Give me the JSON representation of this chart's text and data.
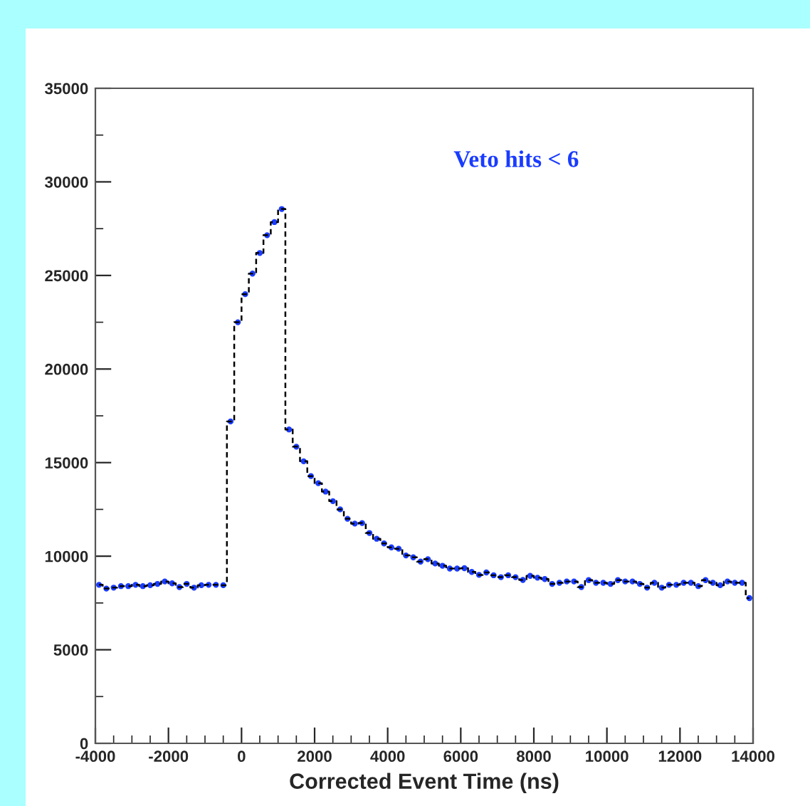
{
  "chart_data": {
    "type": "step",
    "xlabel": "Corrected Event Time (ns)",
    "annotations": [
      "Veto hits < 6"
    ],
    "x": [
      -3900,
      -3700,
      -3500,
      -3300,
      -3100,
      -2900,
      -2700,
      -2500,
      -2300,
      -2100,
      -1900,
      -1700,
      -1500,
      -1300,
      -1100,
      -900,
      -700,
      -500,
      -300,
      -100,
      100,
      300,
      500,
      700,
      900,
      1100,
      1300,
      1500,
      1700,
      1900,
      2100,
      2300,
      2500,
      2700,
      2900,
      3100,
      3300,
      3500,
      3700,
      3900,
      4100,
      4300,
      4500,
      4700,
      4900,
      5100,
      5300,
      5500,
      5700,
      5900,
      6100,
      6300,
      6500,
      6700,
      6900,
      7100,
      7300,
      7500,
      7700,
      7900,
      8100,
      8300,
      8500,
      8700,
      8900,
      9100,
      9300,
      9500,
      9700,
      9900,
      10100,
      10300,
      10500,
      10700,
      10900,
      11100,
      11300,
      11500,
      11700,
      11900,
      12100,
      12300,
      12500,
      12700,
      12900,
      13100,
      13300,
      13500,
      13700,
      13900
    ],
    "series": [
      {
        "color": "#000000",
        "line_style": "dashed",
        "values": [
          8470,
          8270,
          8320,
          8400,
          8400,
          8470,
          8400,
          8450,
          8520,
          8650,
          8550,
          8350,
          8520,
          8320,
          8450,
          8470,
          8470,
          8450,
          17200,
          22500,
          24000,
          25100,
          26200,
          27150,
          27850,
          28550,
          16770,
          15850,
          15070,
          14280,
          13900,
          13450,
          12940,
          12500,
          12000,
          11740,
          11770,
          11240,
          10930,
          10680,
          10470,
          10400,
          10040,
          9940,
          9710,
          9840,
          9610,
          9490,
          9340,
          9340,
          9360,
          9160,
          9000,
          9130,
          8980,
          8880,
          8980,
          8880,
          8730,
          8950,
          8850,
          8780,
          8520,
          8580,
          8650,
          8650,
          8350,
          8720,
          8580,
          8580,
          8520,
          8720,
          8650,
          8650,
          8520,
          8320,
          8580,
          8320,
          8470,
          8470,
          8580,
          8580,
          8400,
          8720,
          8580,
          8450,
          8650,
          8580,
          8580,
          7760
        ]
      },
      {
        "type": "scatter",
        "color": "#1a3cff",
        "marker": "circle",
        "values": [
          8470,
          8270,
          8320,
          8400,
          8400,
          8470,
          8400,
          8450,
          8520,
          8650,
          8550,
          8350,
          8520,
          8320,
          8450,
          8470,
          8470,
          8450,
          17200,
          22500,
          24000,
          25100,
          26200,
          27150,
          27850,
          28550,
          16770,
          15850,
          15070,
          14280,
          13900,
          13450,
          12940,
          12500,
          12000,
          11740,
          11770,
          11240,
          10930,
          10680,
          10470,
          10400,
          10040,
          9940,
          9710,
          9840,
          9610,
          9490,
          9340,
          9340,
          9360,
          9160,
          9000,
          9130,
          8980,
          8880,
          8980,
          8880,
          8730,
          8950,
          8850,
          8780,
          8520,
          8580,
          8650,
          8650,
          8350,
          8720,
          8580,
          8580,
          8520,
          8720,
          8650,
          8650,
          8520,
          8320,
          8580,
          8320,
          8470,
          8470,
          8580,
          8580,
          8400,
          8720,
          8580,
          8450,
          8650,
          8580,
          8580,
          7760
        ]
      }
    ],
    "xlim": [
      -4000,
      14000
    ],
    "xticks": [
      -4000,
      -2000,
      0,
      2000,
      4000,
      6000,
      8000,
      10000,
      12000,
      14000
    ],
    "ylim": [
      0,
      35000
    ],
    "yticks": [
      0,
      5000,
      10000,
      15000,
      20000,
      25000,
      30000,
      35000
    ],
    "grid": false
  }
}
